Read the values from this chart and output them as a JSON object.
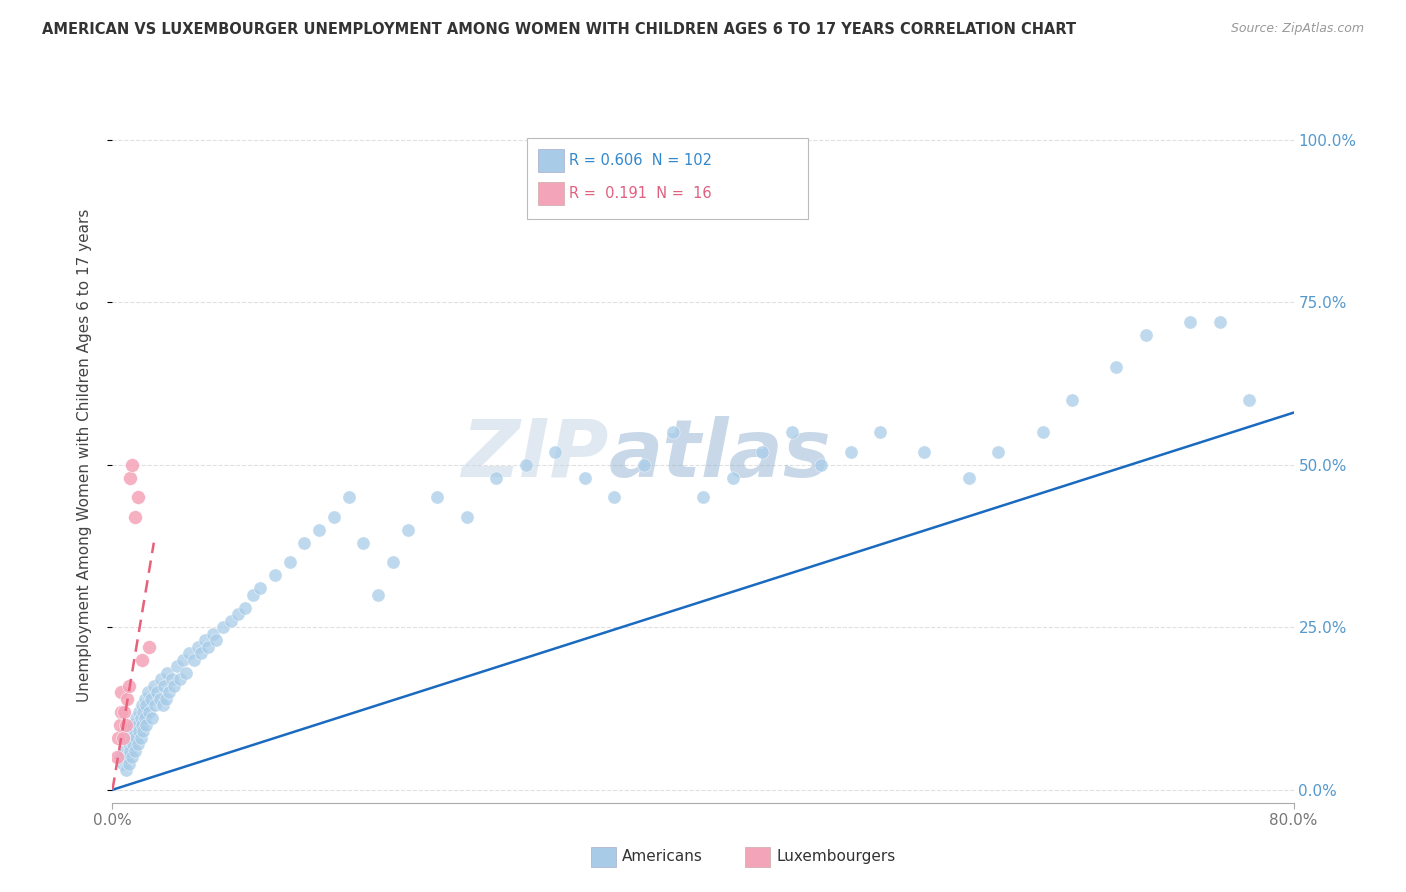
{
  "title": "AMERICAN VS LUXEMBOURGER UNEMPLOYMENT AMONG WOMEN WITH CHILDREN AGES 6 TO 17 YEARS CORRELATION CHART",
  "source": "Source: ZipAtlas.com",
  "ylabel_label": "Unemployment Among Women with Children Ages 6 to 17 years",
  "xlim": [
    0.0,
    0.8
  ],
  "ylim": [
    -0.02,
    1.05
  ],
  "watermark_zip": "ZIP",
  "watermark_atlas": "atlas",
  "background_color": "#ffffff",
  "grid_color": "#e0e0e0",
  "blue_scatter_color": "#a8cce8",
  "pink_scatter_color": "#f4a4b8",
  "blue_line_color": "#1a6abf",
  "pink_line_color": "#e8607a",
  "tick_color_blue": "#5599cc",
  "tick_color_gray": "#777777",
  "legend_blue_text_color": "#3388cc",
  "legend_pink_text_color": "#e06080",
  "title_color": "#333333",
  "source_color": "#999999",
  "ylabel_color": "#444444",
  "americans_x": [
    0.005,
    0.007,
    0.008,
    0.009,
    0.01,
    0.01,
    0.011,
    0.011,
    0.012,
    0.012,
    0.013,
    0.013,
    0.014,
    0.014,
    0.015,
    0.015,
    0.016,
    0.016,
    0.017,
    0.017,
    0.018,
    0.018,
    0.019,
    0.019,
    0.02,
    0.02,
    0.021,
    0.021,
    0.022,
    0.022,
    0.023,
    0.023,
    0.024,
    0.025,
    0.026,
    0.027,
    0.028,
    0.029,
    0.03,
    0.032,
    0.033,
    0.034,
    0.035,
    0.036,
    0.037,
    0.038,
    0.04,
    0.042,
    0.044,
    0.046,
    0.048,
    0.05,
    0.052,
    0.055,
    0.058,
    0.06,
    0.063,
    0.065,
    0.068,
    0.07,
    0.075,
    0.08,
    0.085,
    0.09,
    0.095,
    0.1,
    0.11,
    0.12,
    0.13,
    0.14,
    0.15,
    0.16,
    0.17,
    0.18,
    0.19,
    0.2,
    0.22,
    0.24,
    0.26,
    0.28,
    0.3,
    0.32,
    0.34,
    0.36,
    0.38,
    0.4,
    0.42,
    0.44,
    0.46,
    0.48,
    0.5,
    0.52,
    0.55,
    0.58,
    0.6,
    0.63,
    0.65,
    0.68,
    0.7,
    0.73,
    0.75,
    0.77
  ],
  "americans_y": [
    0.05,
    0.04,
    0.06,
    0.03,
    0.08,
    0.05,
    0.07,
    0.04,
    0.09,
    0.06,
    0.08,
    0.05,
    0.1,
    0.07,
    0.09,
    0.06,
    0.11,
    0.08,
    0.1,
    0.07,
    0.12,
    0.09,
    0.11,
    0.08,
    0.13,
    0.1,
    0.12,
    0.09,
    0.14,
    0.11,
    0.13,
    0.1,
    0.15,
    0.12,
    0.14,
    0.11,
    0.16,
    0.13,
    0.15,
    0.14,
    0.17,
    0.13,
    0.16,
    0.14,
    0.18,
    0.15,
    0.17,
    0.16,
    0.19,
    0.17,
    0.2,
    0.18,
    0.21,
    0.2,
    0.22,
    0.21,
    0.23,
    0.22,
    0.24,
    0.23,
    0.25,
    0.26,
    0.27,
    0.28,
    0.3,
    0.31,
    0.33,
    0.35,
    0.38,
    0.4,
    0.42,
    0.45,
    0.38,
    0.3,
    0.35,
    0.4,
    0.45,
    0.42,
    0.48,
    0.5,
    0.52,
    0.48,
    0.45,
    0.5,
    0.55,
    0.45,
    0.48,
    0.52,
    0.55,
    0.5,
    0.52,
    0.55,
    0.52,
    0.48,
    0.52,
    0.55,
    0.6,
    0.65,
    0.7,
    0.72,
    0.72,
    0.6
  ],
  "luxembourgers_x": [
    0.003,
    0.004,
    0.005,
    0.006,
    0.006,
    0.007,
    0.008,
    0.009,
    0.01,
    0.011,
    0.012,
    0.013,
    0.015,
    0.017,
    0.02,
    0.025
  ],
  "luxembourgers_y": [
    0.05,
    0.08,
    0.1,
    0.12,
    0.15,
    0.08,
    0.12,
    0.1,
    0.14,
    0.16,
    0.48,
    0.5,
    0.42,
    0.45,
    0.2,
    0.22
  ],
  "blue_line_x": [
    0.0,
    0.8
  ],
  "blue_line_y": [
    0.0,
    0.58
  ],
  "pink_line_x": [
    0.0,
    0.028
  ],
  "pink_line_y": [
    0.0,
    0.38
  ]
}
